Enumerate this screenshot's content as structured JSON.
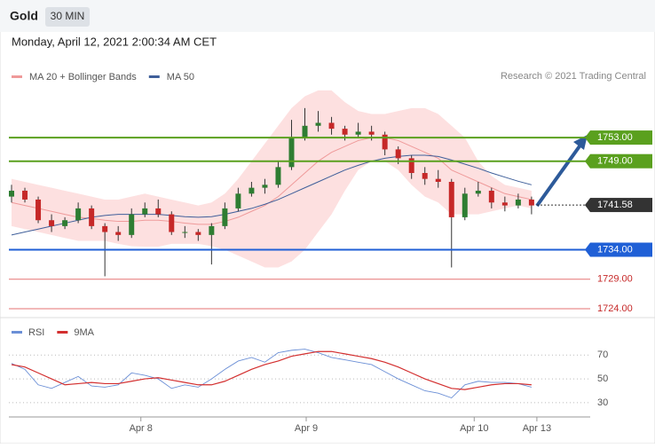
{
  "header": {
    "title": "Gold",
    "timeframe": "30 MIN",
    "date": "Monday, April 12, 2021 2:00:34 AM CET",
    "credit": "Research © 2021 Trading Central"
  },
  "chart_data": [
    {
      "type": "candlestick",
      "legend": [
        {
          "name": "MA 20 + Bollinger Bands",
          "color": "#ef9a9a"
        },
        {
          "name": "MA 50",
          "color": "#3f5f9a"
        }
      ],
      "ylim": [
        1722.5,
        1770.3
      ],
      "xlim": [
        -0.2,
        43.4
      ],
      "xticks": [
        {
          "value": 9.7,
          "label": "Apr 8"
        },
        {
          "value": 22.1,
          "label": "Apr 9"
        },
        {
          "value": 34.7,
          "label": "Apr 10"
        },
        {
          "value": 39.4,
          "label": "Apr 13"
        }
      ],
      "up_color": "#2e7d32",
      "down_color": "#c62828",
      "candles": [
        [
          1743,
          1745,
          1742,
          1744
        ],
        [
          1744,
          1744.5,
          1742,
          1742.5
        ],
        [
          1742.5,
          1743,
          1738.5,
          1739
        ],
        [
          1739,
          1740,
          1737,
          1738
        ],
        [
          1738,
          1739.5,
          1737.5,
          1739
        ],
        [
          1739,
          1742,
          1738.5,
          1741
        ],
        [
          1741,
          1741.5,
          1737.5,
          1738
        ],
        [
          1738,
          1738.5,
          1729.5,
          1737
        ],
        [
          1737,
          1738,
          1735.5,
          1736.5
        ],
        [
          1736.5,
          1741,
          1736,
          1740
        ],
        [
          1740,
          1742,
          1739.5,
          1741
        ],
        [
          1741,
          1742.5,
          1739.5,
          1740
        ],
        [
          1740,
          1740.5,
          1736.5,
          1737
        ],
        [
          1737,
          1738,
          1736,
          1737
        ],
        [
          1737,
          1737.5,
          1735.5,
          1736.5
        ],
        [
          1736.5,
          1738.5,
          1731.5,
          1738
        ],
        [
          1738,
          1742,
          1737.5,
          1741
        ],
        [
          1741,
          1744.5,
          1740.5,
          1743.5
        ],
        [
          1743.5,
          1745.5,
          1743,
          1744.5
        ],
        [
          1744.5,
          1746,
          1743.5,
          1745
        ],
        [
          1745,
          1749,
          1744.5,
          1748
        ],
        [
          1748,
          1756,
          1747.5,
          1753
        ],
        [
          1753,
          1758,
          1752.5,
          1755
        ],
        [
          1755,
          1757.5,
          1754,
          1755.5
        ],
        [
          1755.5,
          1756.5,
          1753.5,
          1754.5
        ],
        [
          1754.5,
          1755,
          1752.5,
          1753.5
        ],
        [
          1753.5,
          1755.5,
          1753,
          1754
        ],
        [
          1754,
          1755,
          1752.5,
          1753.5
        ],
        [
          1753.5,
          1754,
          1750,
          1751
        ],
        [
          1751,
          1751.5,
          1748.5,
          1749.5
        ],
        [
          1749.5,
          1750,
          1746,
          1747
        ],
        [
          1747,
          1748,
          1745,
          1746
        ],
        [
          1746,
          1747.5,
          1744.5,
          1745.5
        ],
        [
          1745.5,
          1746,
          1731,
          1739.5
        ],
        [
          1739.5,
          1744.5,
          1739,
          1743.5
        ],
        [
          1743.5,
          1745.5,
          1743,
          1744
        ],
        [
          1744,
          1744.5,
          1741,
          1742
        ],
        [
          1742,
          1743,
          1740.5,
          1741.5
        ],
        [
          1741.5,
          1743.5,
          1741,
          1742.5
        ],
        [
          1742.5,
          1743,
          1740,
          1741.5
        ]
      ],
      "ma20": [
        1742,
        1741.5,
        1741,
        1740.5,
        1740,
        1739.5,
        1739.3,
        1739,
        1738.8,
        1738.8,
        1739,
        1739,
        1738.8,
        1738.5,
        1738.3,
        1738.3,
        1738.8,
        1739.5,
        1740.5,
        1741.5,
        1743,
        1745,
        1747,
        1749,
        1750.5,
        1751.5,
        1752.5,
        1753,
        1753,
        1752.5,
        1751.5,
        1750.5,
        1749.5,
        1747.5,
        1746.5,
        1745.5,
        1744.5,
        1743.5,
        1743,
        1742.5
      ],
      "bb_upper": [
        1746,
        1745.5,
        1745,
        1744.5,
        1744,
        1743.5,
        1743,
        1742.5,
        1742.5,
        1743,
        1743.5,
        1743,
        1742.5,
        1742,
        1741.5,
        1742,
        1743.5,
        1746,
        1749,
        1752,
        1755,
        1758,
        1760,
        1761,
        1761,
        1759,
        1757.5,
        1757,
        1757,
        1757.5,
        1758,
        1758,
        1757,
        1755,
        1753,
        1749,
        1746.5,
        1745,
        1744.5,
        1744
      ],
      "bb_lower": [
        1738,
        1737.5,
        1737,
        1736.5,
        1736,
        1735.5,
        1735.5,
        1735.5,
        1735,
        1734.6,
        1734.5,
        1734.5,
        1735,
        1735,
        1735,
        1734.6,
        1734,
        1733,
        1732,
        1731,
        1731,
        1732,
        1734,
        1737,
        1740,
        1744,
        1747.5,
        1749,
        1749,
        1747.5,
        1745,
        1743,
        1742,
        1740,
        1740,
        1740,
        1740.5,
        1741,
        1741.5,
        1741
      ],
      "ma50": [
        1736.5,
        1737,
        1737.5,
        1738,
        1738.5,
        1739,
        1739.5,
        1739.8,
        1740,
        1740,
        1740,
        1740,
        1739.8,
        1739.6,
        1739.5,
        1739.6,
        1740,
        1740.5,
        1741,
        1741.7,
        1742.5,
        1743.5,
        1744.5,
        1745.5,
        1746.5,
        1747.5,
        1748.3,
        1749,
        1749.5,
        1749.8,
        1750,
        1750,
        1749.8,
        1749.2,
        1748.5,
        1747.8,
        1747,
        1746.3,
        1745.6,
        1745
      ],
      "levels": [
        {
          "value": 1753,
          "label": "1753.00",
          "color": "#5aa01e",
          "boxed": true
        },
        {
          "value": 1749,
          "label": "1749.00",
          "color": "#5aa01e",
          "boxed": true
        },
        {
          "value": 1741.58,
          "label": "1741.58",
          "color": "#333333",
          "boxed": true
        },
        {
          "value": 1734,
          "label": "1734.00",
          "color": "#1f5fd6",
          "boxed": true
        },
        {
          "value": 1729,
          "label": "1729.00",
          "color": "#e57373",
          "boxed": false
        },
        {
          "value": 1724,
          "label": "1724.00",
          "color": "#e57373",
          "boxed": false
        }
      ]
    },
    {
      "type": "line",
      "ylim": [
        18,
        100
      ],
      "yticks": [
        30,
        50,
        70
      ],
      "series": [
        {
          "name": "RSI",
          "color": "#6b8fd6",
          "values": [
            63,
            58,
            45,
            42,
            47,
            52,
            44,
            43,
            45,
            55,
            53,
            50,
            42,
            45,
            43,
            50,
            58,
            65,
            68,
            64,
            72,
            74,
            75,
            72,
            68,
            66,
            64,
            62,
            56,
            50,
            45,
            40,
            38,
            34,
            45,
            48,
            47,
            47,
            46,
            43
          ]
        },
        {
          "name": "9MA",
          "color": "#d32f2f",
          "values": [
            62,
            60,
            55,
            50,
            45,
            46,
            47,
            46,
            46,
            48,
            50,
            51,
            49,
            47,
            45,
            45,
            48,
            53,
            58,
            62,
            65,
            69,
            71,
            73,
            73,
            71,
            69,
            67,
            64,
            60,
            55,
            50,
            46,
            42,
            41,
            43,
            45,
            46,
            46,
            45
          ]
        }
      ]
    }
  ]
}
